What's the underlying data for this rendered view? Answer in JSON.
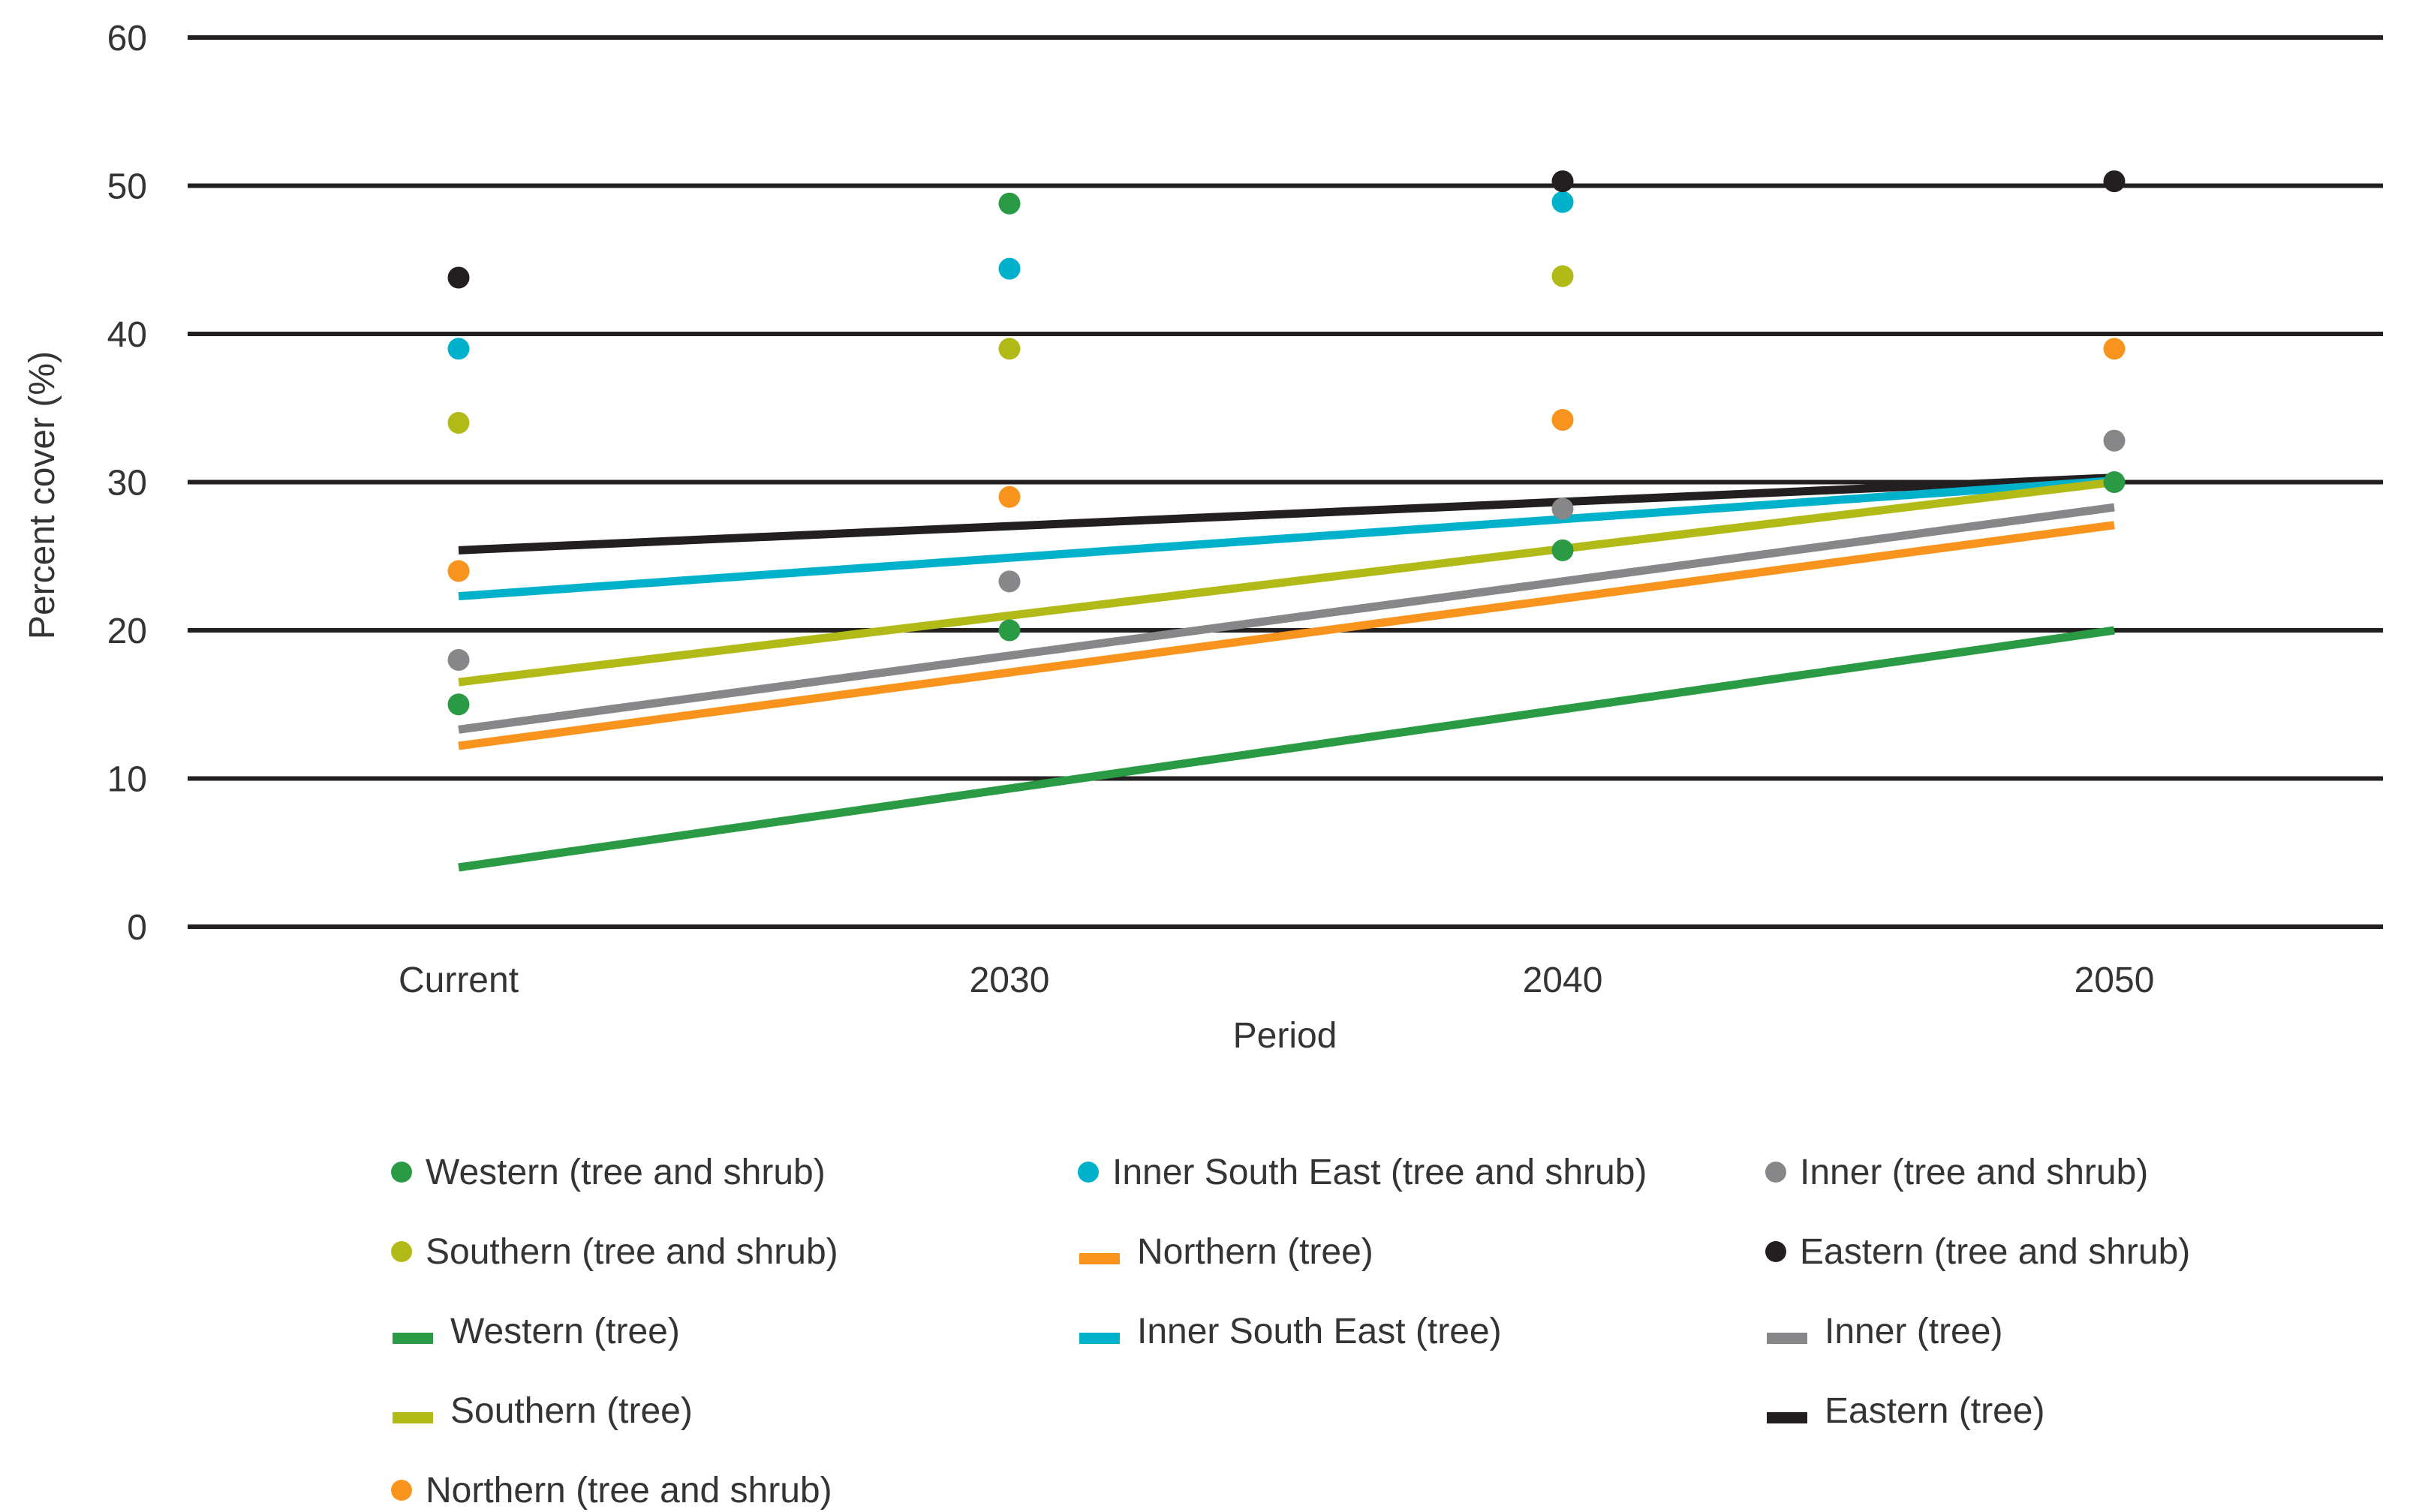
{
  "chart_data": {
    "type": "scatter",
    "title": "",
    "xlabel": "Period",
    "ylabel": "Percent cover (%)",
    "categories": [
      "Current",
      "2030",
      "2040",
      "2050"
    ],
    "ylim": [
      0,
      60
    ],
    "yticks": [
      "0",
      "10",
      "20",
      "30",
      "40",
      "50",
      "60"
    ],
    "grid": "horizontal",
    "legend_position": "bottom",
    "colors": {
      "western": "#2a9b44",
      "southern": "#b2ba17",
      "northern": "#f8941e",
      "innerSouthEast": "#00b1cb",
      "inner": "#87878a",
      "eastern": "#231f20",
      "grid": "#231f20",
      "text": "#333436"
    },
    "dot_series": [
      {
        "name": "Western (tree and shrub)",
        "color": "western",
        "points": [
          {
            "x": "Current",
            "y": 15
          },
          {
            "x": "2030",
            "y": 20
          },
          {
            "x": "2040",
            "y": 25.4
          },
          {
            "x": "2050",
            "y": 30
          }
        ]
      },
      {
        "name": "Inner South East (tree and shrub)",
        "color": "innerSouthEast",
        "points": [
          {
            "x": "Current",
            "y": 39
          },
          {
            "x": "2030",
            "y": 44.4
          },
          {
            "x": "2040",
            "y": 48.9
          }
        ]
      },
      {
        "name": "Inner (tree and shrub)",
        "color": "inner",
        "points": [
          {
            "x": "Current",
            "y": 18
          },
          {
            "x": "2030",
            "y": 23.3
          },
          {
            "x": "2040",
            "y": 28.2
          },
          {
            "x": "2050",
            "y": 32.8
          }
        ]
      },
      {
        "name": "Southern (tree and shrub)",
        "color": "southern",
        "points": [
          {
            "x": "Current",
            "y": 34
          },
          {
            "x": "2030",
            "y": 39
          },
          {
            "x": "2040",
            "y": 43.9
          }
        ]
      },
      {
        "name": "Northern (tree and shrub)",
        "color": "northern",
        "points": [
          {
            "x": "Current",
            "y": 24
          },
          {
            "x": "2030",
            "y": 29
          },
          {
            "x": "2040",
            "y": 34.2
          },
          {
            "x": "2050",
            "y": 39
          }
        ]
      },
      {
        "name": "Eastern (tree and shrub)",
        "color": "eastern",
        "points": [
          {
            "x": "Current",
            "y": 43.8
          },
          {
            "x": "2040",
            "y": 50.3
          },
          {
            "x": "2050",
            "y": 50.3
          }
        ]
      },
      {
        "name": "green dot shown at 2030",
        "color": "western",
        "points": [
          {
            "x": "2030",
            "y": 48.8
          }
        ]
      }
    ],
    "line_series": [
      {
        "name": "Eastern (tree)",
        "color": "eastern",
        "from": {
          "x": "Current",
          "y": 25.4
        },
        "to": {
          "x": "2050",
          "y": 30.3
        }
      },
      {
        "name": "Inner South East (tree)",
        "color": "innerSouthEast",
        "from": {
          "x": "Current",
          "y": 22.3
        },
        "to": {
          "x": "2050",
          "y": 30.1
        }
      },
      {
        "name": "Southern (tree)",
        "color": "southern",
        "from": {
          "x": "Current",
          "y": 16.5
        },
        "to": {
          "x": "2050",
          "y": 30
        }
      },
      {
        "name": "Inner (tree)",
        "color": "inner",
        "from": {
          "x": "Current",
          "y": 13.3
        },
        "to": {
          "x": "2050",
          "y": 28.3
        }
      },
      {
        "name": "Northern (tree)",
        "color": "northern",
        "from": {
          "x": "Current",
          "y": 12.2
        },
        "to": {
          "x": "2050",
          "y": 27.1
        }
      },
      {
        "name": "Western (tree)",
        "color": "western",
        "from": {
          "x": "Current",
          "y": 4
        },
        "to": {
          "x": "2050",
          "y": 20
        }
      }
    ],
    "legend": {
      "columns": [
        {
          "items": [
            {
              "marker": "dot",
              "color": "western",
              "label": "Western (tree and shrub)"
            },
            {
              "marker": "dot",
              "color": "southern",
              "label": "Southern (tree and shrub)"
            },
            {
              "marker": "line",
              "color": "western",
              "label": "Western (tree)"
            },
            {
              "marker": "line",
              "color": "southern",
              "label": "Southern (tree)"
            },
            {
              "marker": "dot",
              "color": "northern",
              "label": "Northern (tree and shrub)"
            }
          ]
        },
        {
          "items": [
            {
              "marker": "dot",
              "color": "innerSouthEast",
              "label": "Inner South East (tree and shrub)"
            },
            {
              "marker": "line",
              "color": "northern",
              "label": "Northern (tree)"
            },
            {
              "marker": "line",
              "color": "innerSouthEast",
              "label": "Inner South East (tree)"
            }
          ]
        },
        {
          "items": [
            {
              "marker": "dot",
              "color": "inner",
              "label": "Inner (tree and shrub)"
            },
            {
              "marker": "dot",
              "color": "eastern",
              "label": "Eastern (tree and shrub)"
            },
            {
              "marker": "line",
              "color": "inner",
              "label": "Inner (tree)"
            },
            {
              "marker": "line",
              "color": "eastern",
              "label": "Eastern (tree)"
            }
          ]
        }
      ]
    }
  }
}
